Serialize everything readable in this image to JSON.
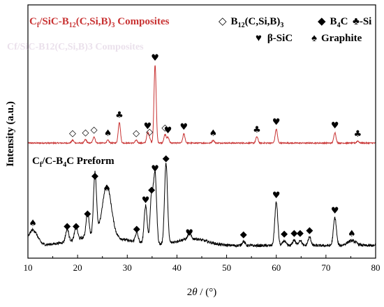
{
  "chart_data": {
    "type": "line",
    "xlabel": "2θ / (°)",
    "ylabel": "Intensity (a.u.)",
    "xlim": [
      10,
      80
    ],
    "xticks": [
      "10",
      "20",
      "30",
      "40",
      "50",
      "60",
      "70",
      "80"
    ],
    "grid": false,
    "legend": {
      "items": [
        {
          "symbol": "◇",
          "label": "B12(C,Si,B)3",
          "marker": "B12"
        },
        {
          "symbol": "◆",
          "label": "B4C",
          "marker": "B4C"
        },
        {
          "symbol": "♣",
          "label": "-Si",
          "marker": "Si"
        },
        {
          "symbol": "♥",
          "label": "β-SiC",
          "marker": "SiC"
        },
        {
          "symbol": "♠",
          "label": "Graphite",
          "marker": "Graphite"
        }
      ]
    },
    "series": [
      {
        "name": "Cf/SiC-B12(C,Si,B)3 Composites",
        "color": "#c83232",
        "peaks": [
          {
            "x": 19.0,
            "height": 4,
            "phase": "B12"
          },
          {
            "x": 21.6,
            "height": 5,
            "phase": "B12"
          },
          {
            "x": 23.3,
            "height": 9,
            "phase": "B12"
          },
          {
            "x": 26.1,
            "height": 4,
            "phase": "Graphite"
          },
          {
            "x": 28.4,
            "height": 30,
            "phase": "Si"
          },
          {
            "x": 31.8,
            "height": 4,
            "phase": "B12"
          },
          {
            "x": 34.1,
            "height": 14,
            "phase": "SiC"
          },
          {
            "x": 34.5,
            "height": 6,
            "phase": "B12"
          },
          {
            "x": 35.6,
            "height": 112,
            "phase": "SiC"
          },
          {
            "x": 37.6,
            "height": 12,
            "phase": "B12"
          },
          {
            "x": 38.2,
            "height": 8,
            "phase": "SiC"
          },
          {
            "x": 41.4,
            "height": 13,
            "phase": "SiC"
          },
          {
            "x": 47.3,
            "height": 4,
            "phase": "Graphite"
          },
          {
            "x": 56.1,
            "height": 9,
            "phase": "Si"
          },
          {
            "x": 60.0,
            "height": 20,
            "phase": "SiC"
          },
          {
            "x": 71.8,
            "height": 15,
            "phase": "SiC"
          },
          {
            "x": 76.4,
            "height": 3,
            "phase": "Si"
          }
        ]
      },
      {
        "name": "Cf/C-B4C Preform",
        "color": "#000000",
        "peaks": [
          {
            "x": 11.0,
            "height": 22,
            "phase": "Graphite"
          },
          {
            "x": 17.9,
            "height": 18,
            "phase": "B4C"
          },
          {
            "x": 19.7,
            "height": 18,
            "phase": "B4C"
          },
          {
            "x": 22.0,
            "height": 36,
            "phase": "B4C"
          },
          {
            "x": 23.5,
            "height": 90,
            "phase": "B4C"
          },
          {
            "x": 25.9,
            "height": 72,
            "phase": "Graphite"
          },
          {
            "x": 31.9,
            "height": 14,
            "phase": "B4C"
          },
          {
            "x": 33.7,
            "height": 55,
            "phase": "SiC"
          },
          {
            "x": 34.9,
            "height": 70,
            "phase": "B4C"
          },
          {
            "x": 35.6,
            "height": 100,
            "phase": "SiC"
          },
          {
            "x": 37.8,
            "height": 115,
            "phase": "B4C"
          },
          {
            "x": 42.5,
            "height": 8,
            "phase": "SiC"
          },
          {
            "x": 53.4,
            "height": 6,
            "phase": "B4C"
          },
          {
            "x": 60.0,
            "height": 62,
            "phase": "SiC"
          },
          {
            "x": 61.6,
            "height": 7,
            "phase": "B4C"
          },
          {
            "x": 63.6,
            "height": 8,
            "phase": "B4C"
          },
          {
            "x": 64.8,
            "height": 8,
            "phase": "B4C"
          },
          {
            "x": 66.7,
            "height": 12,
            "phase": "B4C"
          },
          {
            "x": 71.8,
            "height": 40,
            "phase": "SiC"
          },
          {
            "x": 75.2,
            "height": 7,
            "phase": "Graphite"
          }
        ]
      }
    ]
  },
  "labels": {
    "composite_prefix": "C",
    "composite_sub": "f",
    "composite_rest1": "/SiC-B",
    "composite_sub2": "12",
    "composite_rest2": "(C,Si,B)",
    "composite_sub3": "3",
    "composite_rest3": " Composites",
    "composite_ghost": "Cf/SiC-B12(C,Si,B)3 Composites",
    "preform_prefix": "C",
    "preform_sub": "f",
    "preform_rest1": "/C-B",
    "preform_sub2": "4",
    "preform_rest2": "C  Preform",
    "legend_b12_main": "B",
    "legend_b12_sub": "12",
    "legend_b12_rest": "(C,Si,B)",
    "legend_b12_sub2": "3",
    "legend_b4c_main": "B",
    "legend_b4c_sub": "4",
    "legend_b4c_rest": "C",
    "xlabel_theta": "θ"
  },
  "colors": {
    "composite": "#c83232",
    "preform": "#000000",
    "axis": "#000000"
  }
}
